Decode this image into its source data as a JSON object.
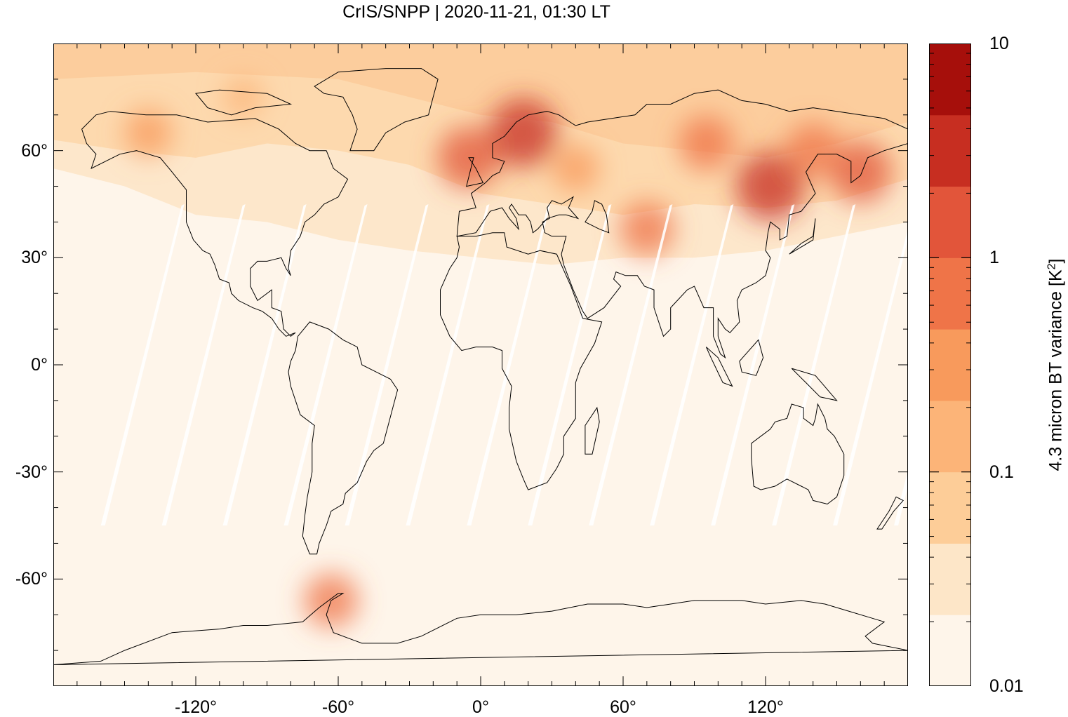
{
  "title": "CrIS/SNPP | 2020-11-21, 01:30 LT",
  "map": {
    "lon_range": [
      -180,
      180
    ],
    "lat_range": [
      -90,
      90
    ],
    "background_color": "#fef5ea",
    "coast_color": "#000000"
  },
  "x_ticks": [
    {
      "value": -120,
      "label": "-120°"
    },
    {
      "value": -60,
      "label": "-60°"
    },
    {
      "value": 0,
      "label": "0°"
    },
    {
      "value": 60,
      "label": "60°"
    },
    {
      "value": 120,
      "label": "120°"
    }
  ],
  "y_ticks": [
    {
      "value": 60,
      "label": "60°"
    },
    {
      "value": 30,
      "label": "30°"
    },
    {
      "value": 0,
      "label": "0°"
    },
    {
      "value": -30,
      "label": "-30°"
    },
    {
      "value": -60,
      "label": "-60°"
    }
  ],
  "colorbar": {
    "title_main": "4.3 micron BT variance [K",
    "title_sup": "2",
    "title_end": "]",
    "scale": "log",
    "range": [
      0.01,
      10
    ],
    "labels": [
      {
        "value": 10,
        "label": "10"
      },
      {
        "value": 1,
        "label": "1"
      },
      {
        "value": 0.1,
        "label": "0.1"
      },
      {
        "value": 0.01,
        "label": "0.01"
      }
    ],
    "colors": [
      "#fef5ea",
      "#fde6c8",
      "#fdcd98",
      "#fcb478",
      "#f89a5c",
      "#ef7448",
      "#e2553a",
      "#c72e21",
      "#a60f0b"
    ]
  },
  "hotspots": [
    {
      "lon": 18,
      "lat": 65,
      "level": 7
    },
    {
      "lon": -5,
      "lat": 58,
      "level": 6
    },
    {
      "lon": 122,
      "lat": 50,
      "level": 7
    },
    {
      "lon": 160,
      "lat": 54,
      "level": 6
    },
    {
      "lon": 70,
      "lat": 38,
      "level": 5
    },
    {
      "lon": 95,
      "lat": 62,
      "level": 5
    },
    {
      "lon": 40,
      "lat": 55,
      "level": 4
    },
    {
      "lon": -140,
      "lat": 65,
      "level": 4
    },
    {
      "lon": -63,
      "lat": -66,
      "level": 5
    },
    {
      "lon": -100,
      "lat": 75,
      "level": 3
    },
    {
      "lon": 140,
      "lat": 60,
      "level": 5
    }
  ]
}
